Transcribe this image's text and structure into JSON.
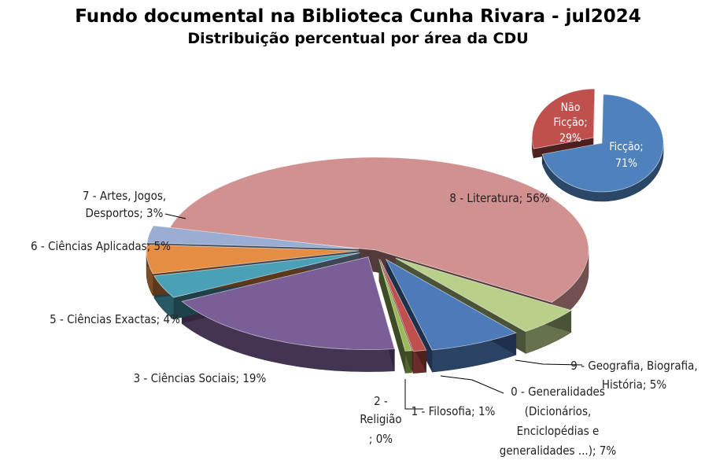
{
  "chart_data": [
    {
      "type": "pie",
      "title": "Fundo documental na Biblioteca Cunha Rivara - jul2024",
      "subtitle": "Distribuição percentual por área da CDU",
      "slices": [
        {
          "label": "8 - Literatura",
          "value": 56,
          "display": "8 - Literatura; 56%",
          "color": "#d09190"
        },
        {
          "label": "9 - Geografia, Biografia, História",
          "value": 5,
          "display": "9 - Geografia, Biografia, História; 5%",
          "color": "#b9d08a"
        },
        {
          "label": "0 - Generalidades (Dicionários, Enciclopédias e generalidades ...)",
          "value": 7,
          "display": "0 - Generalidades (Dicionários, Enciclopédias e generalidades ...); 7%",
          "color": "#4d7ab8"
        },
        {
          "label": "1 - Filosofia",
          "value": 1,
          "display": "1 - Filosofia; 1%",
          "color": "#c0504d"
        },
        {
          "label": "2 - Religião",
          "value": 0,
          "display": "2 - Religião ; 0%",
          "color": "#9bbb59"
        },
        {
          "label": "3 - Ciências Sociais",
          "value": 19,
          "display": "3 - Ciências Sociais; 19%",
          "color": "#7a5e97"
        },
        {
          "label": "5 - Ciências Exactas",
          "value": 4,
          "display": "5 - Ciências Exactas; 4%",
          "color": "#4aa0b7"
        },
        {
          "label": "6 - Ciências Aplicadas",
          "value": 5,
          "display": "6 - Ciências Aplicadas; 5%",
          "color": "#e48d43"
        },
        {
          "label": "7 - Artes, Jogos, Desportos",
          "value": 3,
          "display": "7 - Artes, Jogos, Desportos; 3%",
          "color": "#9aaed4"
        }
      ]
    },
    {
      "type": "pie",
      "slices": [
        {
          "label": "Ficção",
          "value": 71,
          "display": "Ficção; 71%",
          "color": "#4f81bd"
        },
        {
          "label": "Não Ficção",
          "value": 29,
          "display": "Não Ficção; 29%",
          "color": "#c0504d"
        }
      ]
    }
  ],
  "labels": {
    "literatura": "8 - Literatura; 56%",
    "artes_1": "7 - Artes, Jogos,",
    "artes_2": "Desportos; 3%",
    "aplicadas": "6 - Ciências Aplicadas; 5%",
    "exactas": "5 - Ciências Exactas; 4%",
    "sociais": "3 - Ciências Sociais; 19%",
    "religiao_1": "2 -",
    "religiao_2": "Religião",
    "religiao_3": "; 0%",
    "filosofia": "1 - Filosofia; 1%",
    "general_1": "0 - Generalidades",
    "general_2": "(Dicionários,",
    "general_3": "Enciclopédias e",
    "general_4": "generalidades ...); 7%",
    "geografia_1": "9 - Geografia, Biografia,",
    "geografia_2": "História; 5%",
    "ficcao_1": "Ficção;",
    "ficcao_2": "71%",
    "naoficcao_1": "Não",
    "naoficcao_2": "Ficção;",
    "naoficcao_3": "29%"
  }
}
